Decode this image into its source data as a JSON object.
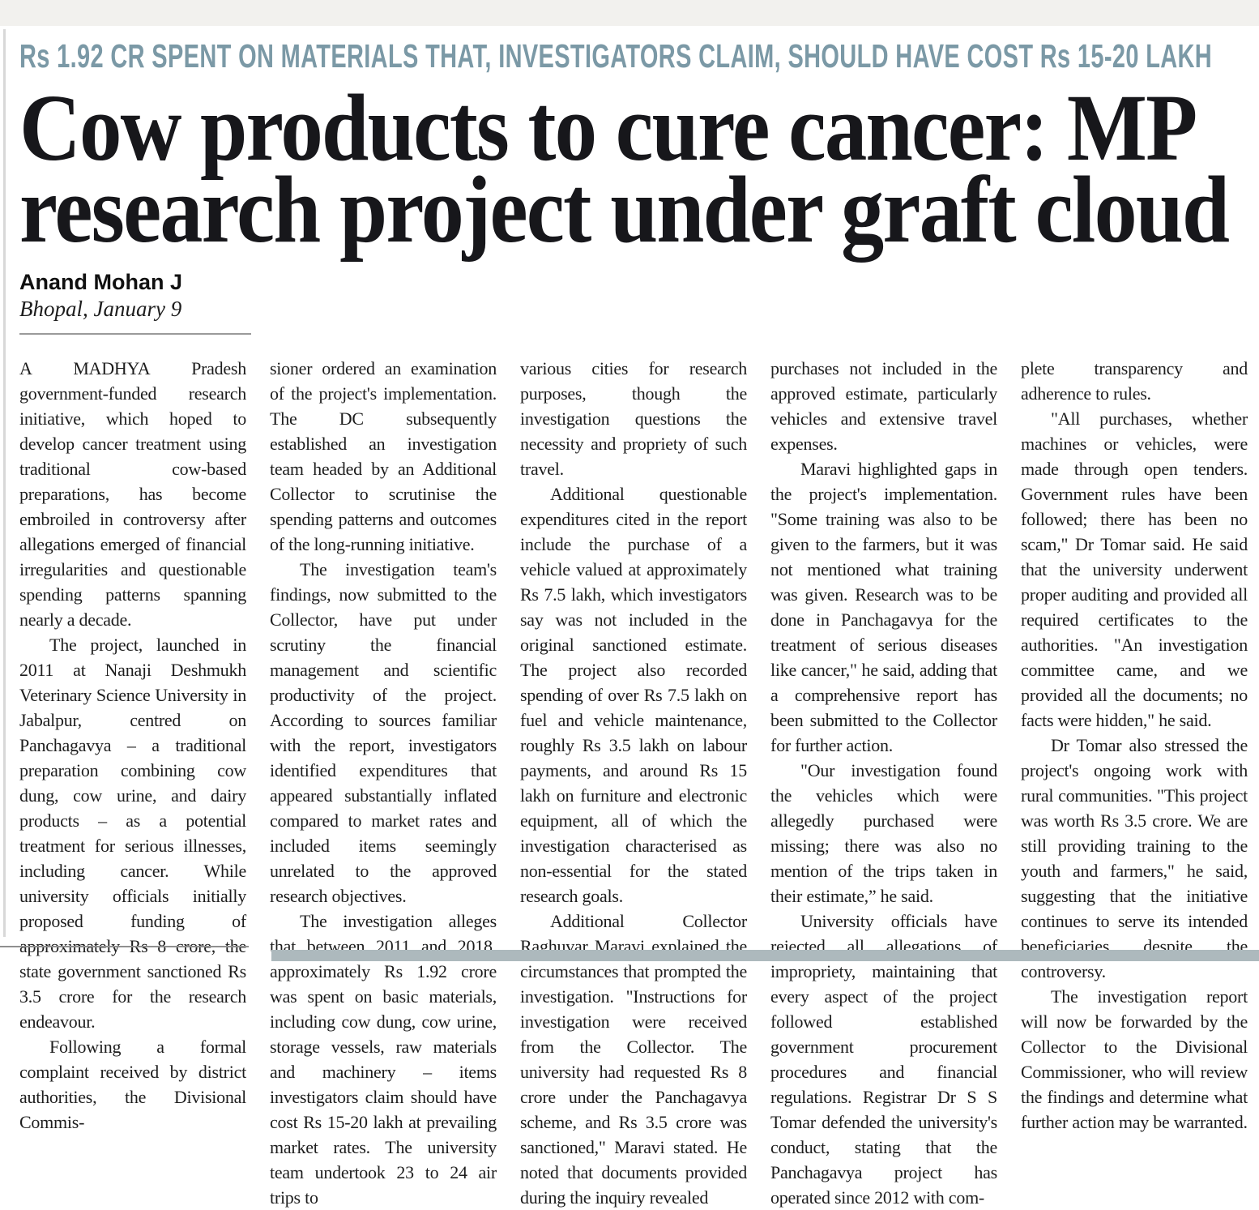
{
  "kicker": "Rs 1.92 CR SPENT ON MATERIALS THAT, INVESTIGATORS CLAIM, SHOULD HAVE COST Rs 15-20 LAKH",
  "headline": {
    "line1": "Cow products to cure cancer: MP",
    "line2": "research project under graft cloud"
  },
  "byline": {
    "author": "Anand Mohan J",
    "dateline": "Bhopal, January 9"
  },
  "colors": {
    "kicker": "#7b99a6",
    "headline": "#17171b",
    "body_text": "#1d1d1d",
    "byline_rule": "#9a9a9a",
    "bottom_panel": "#adb9bd",
    "page_background": "#ffffff"
  },
  "columns": [
    {
      "paragraphs": [
        {
          "indent": false,
          "text": "A MADHYA Pradesh government-funded research initiative, which hoped to develop cancer treatment using traditional cow-based preparations, has become embroiled in controversy after allegations emerged of financial irregularities and questionable spending patterns spanning nearly a decade."
        },
        {
          "indent": true,
          "text": "The project, launched in 2011 at Nanaji Deshmukh Veterinary Science University in Jabalpur, centred on Panchagavya – a traditional preparation combining cow dung, cow urine, and dairy products – as a potential treatment for serious illnesses, including cancer. While university officials initially proposed funding of approximately Rs 8 crore, the state government sanctioned Rs 3.5 crore for the research endeavour."
        },
        {
          "indent": true,
          "text": "Following a formal complaint received by district authorities, the Divisional Commis-"
        }
      ]
    },
    {
      "paragraphs": [
        {
          "indent": false,
          "text": "sioner ordered an examination of the project's implementation. The DC subsequently established an investigation team headed by an Additional Collector to scrutinise the spending patterns and outcomes of the long-running initiative."
        },
        {
          "indent": true,
          "text": "The investigation team's findings, now submitted to the Collector, have put under scrutiny the financial management and scientific productivity of the project. According to sources familiar with the report, investigators identified expenditures that appeared substantially inflated compared to market rates and included items seemingly unrelated to the approved research objectives."
        },
        {
          "indent": true,
          "text": "The investigation alleges that between 2011 and 2018, approximately Rs 1.92 crore was spent on basic materials, including cow dung, cow urine, storage vessels, raw materials and machinery – items investigators claim should have cost Rs 15-20 lakh at prevailing market rates. The university team undertook 23 to 24 air trips to"
        }
      ]
    },
    {
      "paragraphs": [
        {
          "indent": false,
          "text": "various cities for research purposes, though the investigation questions the necessity and propriety of such travel."
        },
        {
          "indent": true,
          "text": "Additional questionable expenditures cited in the report include the purchase of a vehicle valued at approximately Rs 7.5 lakh, which investigators say was not included in the original sanctioned estimate. The project also recorded spending of over Rs 7.5 lakh on fuel and vehicle maintenance, roughly Rs 3.5 lakh on labour payments, and around Rs 15 lakh on furniture and electronic equipment, all of which the investigation characterised as non-essential for the stated research goals."
        },
        {
          "indent": true,
          "text": "Additional Collector Raghuvar Maravi explained the circumstances that prompted the investigation. \"Instructions for investigation were received from the Collector. The university had requested Rs 8 crore under the Panchagavya scheme, and Rs 3.5 crore was sanctioned,\" Maravi stated. He noted that documents provided during the inquiry revealed"
        }
      ]
    },
    {
      "paragraphs": [
        {
          "indent": false,
          "text": "purchases not included in the approved estimate, particularly vehicles and extensive travel expenses."
        },
        {
          "indent": true,
          "text": "Maravi highlighted gaps in the project's implementation. \"Some training was also to be given to the farmers, but it was not mentioned what training was given. Research was to be done in Panchagavya for the treatment of serious diseases like cancer,\" he said, adding that a comprehensive report has been submitted to the Collector for further action."
        },
        {
          "indent": true,
          "text": "\"Our investigation found the vehicles which were allegedly purchased were missing; there was also no mention of the trips taken in their estimate,” he said."
        },
        {
          "indent": true,
          "text": "University officials have rejected all allegations of impropriety, maintaining that every aspect of the project followed established government procurement procedures and financial regulations. Registrar Dr S S Tomar defended the university's conduct, stating that the Panchagavya project has operated since 2012 with com-"
        }
      ]
    },
    {
      "paragraphs": [
        {
          "indent": false,
          "text": "plete transparency and adherence to rules."
        },
        {
          "indent": true,
          "text": "\"All purchases, whether machines or vehicles, were made through open tenders. Government rules have been followed; there has been no scam,\" Dr Tomar said. He said that the university underwent proper auditing and provided all required certificates to the authorities. \"An investigation committee came, and we provided all the documents; no facts were hidden,\" he said."
        },
        {
          "indent": true,
          "text": "Dr Tomar also stressed the project's ongoing work with rural communities. \"This project was worth Rs 3.5 crore. We are still providing training to the youth and farmers,\" he said, suggesting that the initiative continues to serve its intended beneficiaries despite the controversy."
        },
        {
          "indent": true,
          "text": "The investigation report will now be forwarded by the Collector to the Divisional Commissioner, who will review the findings and determine what further action may be warranted."
        }
      ]
    }
  ]
}
